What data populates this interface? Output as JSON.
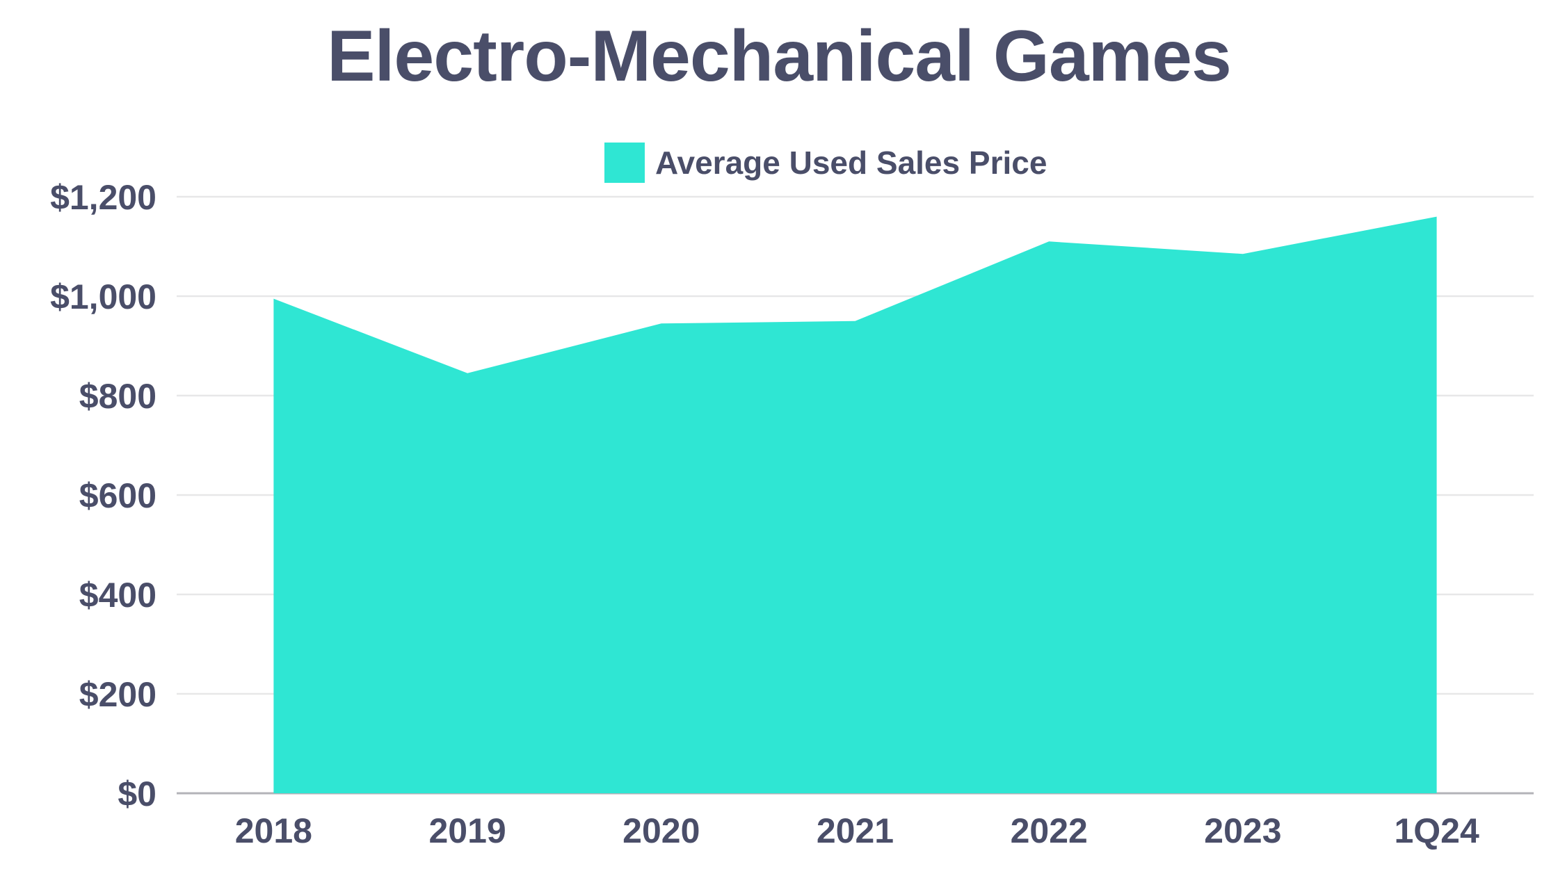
{
  "title": "Electro-Mechanical Games",
  "legend": {
    "label": "Average Used Sales Price"
  },
  "chart_data": {
    "type": "area",
    "title": "Electro-Mechanical Games",
    "categories": [
      "2018",
      "2019",
      "2020",
      "2021",
      "2022",
      "2023",
      "1Q24"
    ],
    "series": [
      {
        "name": "Average Used Sales Price",
        "values": [
          995,
          845,
          945,
          950,
          1110,
          1085,
          1160
        ]
      }
    ],
    "xlabel": "",
    "ylabel": "",
    "ylim": [
      0,
      1200
    ],
    "y_ticks": [
      0,
      200,
      400,
      600,
      800,
      1000,
      1200
    ],
    "y_tick_labels": [
      "$0",
      "$200",
      "$400",
      "$600",
      "$800",
      "$1,000",
      "$1,200"
    ],
    "grid": true,
    "legend_position": "top-center",
    "colors": {
      "area": "#2fe6d3",
      "text": "#4a4e69",
      "gridline": "#e7e7e8",
      "axisline": "#b3b3b8",
      "background": "#ffffff"
    }
  }
}
